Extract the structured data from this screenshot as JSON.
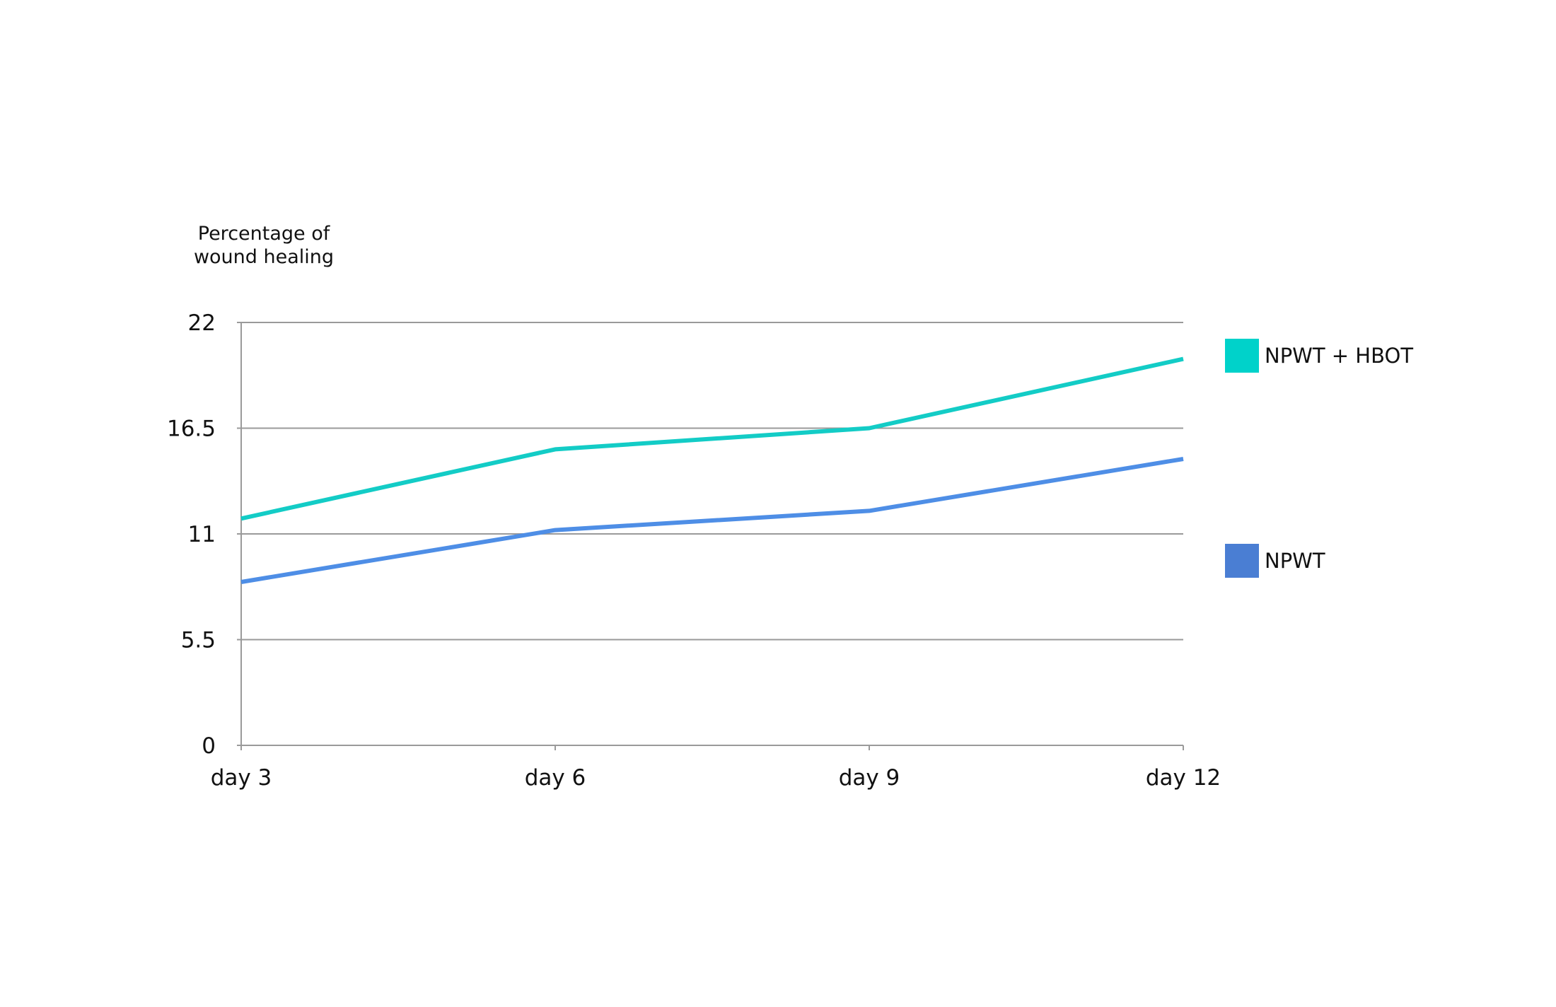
{
  "chart_data": {
    "type": "line",
    "title": "",
    "ylabel_lines": [
      "Percentage of",
      "wound healing"
    ],
    "xlabel": "",
    "categories": [
      "day 3",
      "day 6",
      "day 9",
      "day 12"
    ],
    "yticks": [
      "0",
      "5.5",
      "11",
      "16.5",
      "22"
    ],
    "ylim": [
      0,
      22
    ],
    "grid": true,
    "legend_position": "right",
    "series": [
      {
        "name": "NPWT + HBOT",
        "color": "#13CCC6",
        "values": [
          11.8,
          15.4,
          16.5,
          20.1
        ]
      },
      {
        "name": "NPWT",
        "color": "#4E8EE6",
        "values": [
          8.5,
          11.2,
          12.2,
          14.9
        ]
      }
    ]
  },
  "legend_swatch_colors": [
    "#00D2CA",
    "#4A7ED3"
  ]
}
